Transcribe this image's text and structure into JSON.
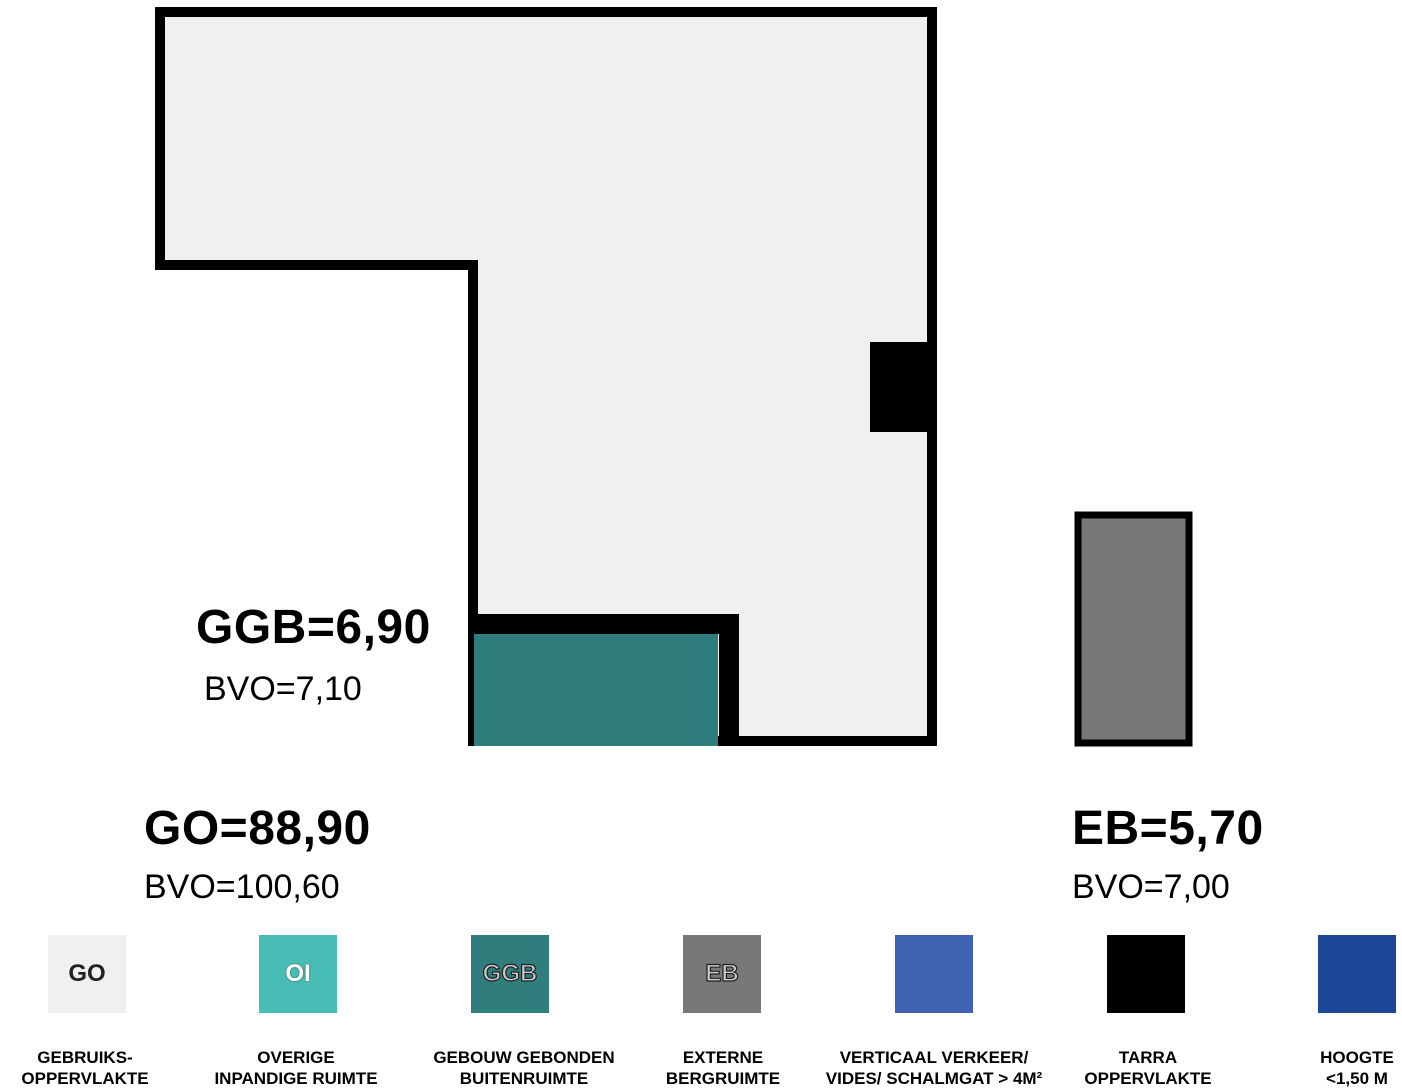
{
  "areas": {
    "ggb": {
      "title": "GGB=6,90",
      "bvo": "BVO=7,10"
    },
    "go": {
      "title": "GO=88,90",
      "bvo": "BVO=100,60"
    },
    "eb": {
      "title": "EB=5,70",
      "bvo": "BVO=7,00"
    }
  },
  "colors": {
    "go": "#f0f0f0",
    "oi": "#48bdb6",
    "ggb": "#2f7e7d",
    "eb": "#787878",
    "verkeer": "#3f63b0",
    "tarra": "#000000",
    "hoogte": "#1c4799",
    "wall": "#000000"
  },
  "legend": [
    {
      "code": "GO",
      "line1": "GEBRUIKS-",
      "line2": "OPPERVLAKTE",
      "icon": "go-swatch"
    },
    {
      "code": "OI",
      "line1": "OVERIGE",
      "line2": "INPANDIGE RUIMTE",
      "icon": "oi-swatch"
    },
    {
      "code": "GGB",
      "line1": "GEBOUW GEBONDEN",
      "line2": "BUITENRUIMTE",
      "icon": "ggb-swatch"
    },
    {
      "code": "EB",
      "line1": "EXTERNE",
      "line2": "BERGRUIMTE",
      "icon": "eb-swatch"
    },
    {
      "code": "",
      "line1": "VERTICAAL VERKEER/",
      "line2": "VIDES/ SCHALMGAT > 4M²",
      "icon": "verkeer-swatch"
    },
    {
      "code": "",
      "line1": "TARRA",
      "line2": "OPPERVLAKTE",
      "icon": "tarra-swatch"
    },
    {
      "code": "",
      "line1": "HOOGTE",
      "line2": "<1,50 M",
      "icon": "hoogte-swatch"
    }
  ]
}
